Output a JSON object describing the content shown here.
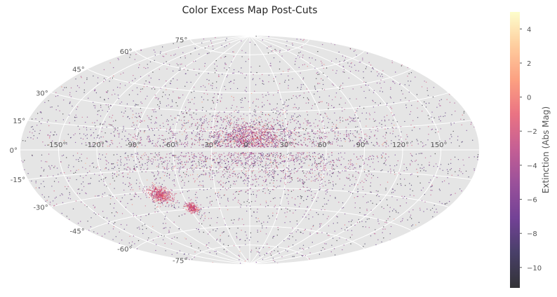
{
  "chart_data": {
    "type": "scatter",
    "projection": "aitoff",
    "title": "Color Excess Map Post-Cuts",
    "longitude_ticks": [
      "-150°",
      "-120°",
      "-90°",
      "-60°",
      "-30°",
      "0°",
      "30°",
      "60°",
      "90°",
      "120°",
      "150°"
    ],
    "longitude_tick_values": [
      -150,
      -120,
      -90,
      -60,
      -30,
      0,
      30,
      60,
      90,
      120,
      150
    ],
    "latitude_ticks": [
      "75°",
      "60°",
      "45°",
      "30°",
      "15°",
      "0°",
      "-15°",
      "-30°",
      "-45°",
      "-60°",
      "-75°"
    ],
    "latitude_tick_values": [
      75,
      60,
      45,
      30,
      15,
      0,
      -15,
      -30,
      -45,
      -60,
      -75
    ],
    "xlim": [
      -180,
      180
    ],
    "ylim": [
      -90,
      90
    ],
    "grid": true,
    "colormap": "magma",
    "colorbar": {
      "label": "Extinction (Abs Mag)",
      "range": [
        -11.2,
        5.0
      ],
      "ticks": [
        4,
        2,
        0,
        -2,
        -4,
        -6,
        -8,
        -10
      ],
      "tick_labels": [
        "4",
        "2",
        "0",
        "−2",
        "−4",
        "−6",
        "−8",
        "−10"
      ]
    },
    "features": [
      {
        "label": "Galactic bulge overdensity",
        "lon": 0,
        "lat": 8
      },
      {
        "label": "Large Magellanic Cloud overdensity",
        "lon": -80,
        "lat": -33
      },
      {
        "label": "Small Magellanic Cloud overdensity",
        "lon": -57,
        "lat": -44
      },
      {
        "label": "Galactic plane gap",
        "lat_range": [
          -2,
          2
        ]
      }
    ],
    "point_count_visible": "dense (tens of thousands of points)"
  }
}
